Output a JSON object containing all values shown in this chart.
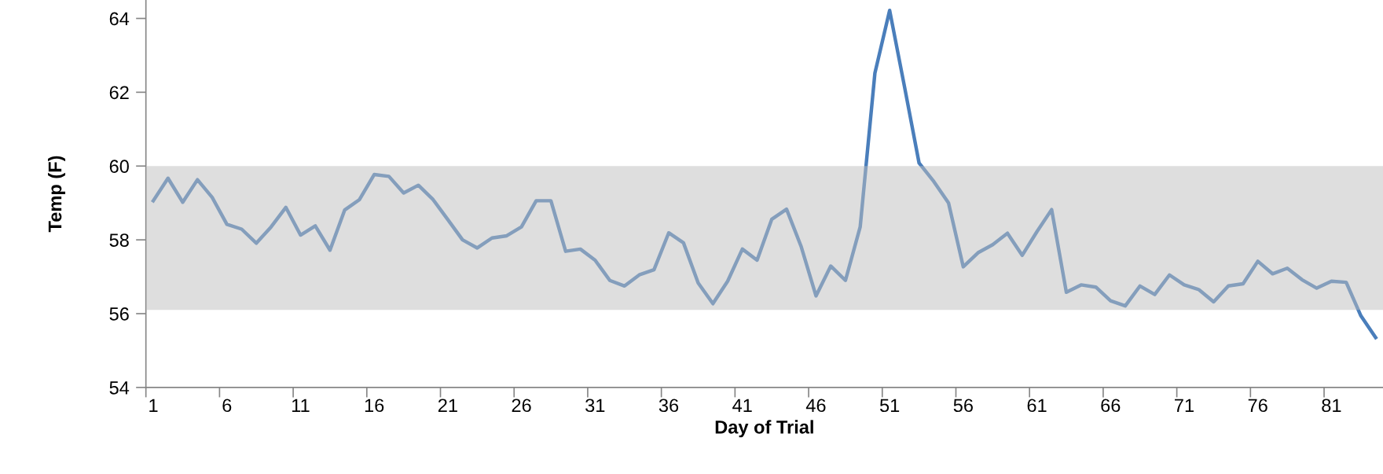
{
  "chart_data": {
    "type": "line",
    "xlabel": "Day of Trial",
    "ylabel": "Temp (F)",
    "categories": [
      "1",
      null,
      null,
      null,
      null,
      "6",
      null,
      null,
      null,
      null,
      "11",
      null,
      null,
      null,
      null,
      "16",
      null,
      null,
      null,
      null,
      "21",
      null,
      null,
      null,
      null,
      "26",
      null,
      null,
      null,
      null,
      "31",
      null,
      null,
      null,
      null,
      "36",
      null,
      null,
      null,
      null,
      "41",
      null,
      null,
      null,
      null,
      "46",
      null,
      null,
      null,
      null,
      "51",
      null,
      null,
      null,
      null,
      "56",
      null,
      null,
      null,
      null,
      "61",
      null,
      null,
      null,
      null,
      "66",
      null,
      null,
      null,
      null,
      "71",
      null,
      null,
      null,
      null,
      "76",
      null,
      null,
      null,
      null,
      "81",
      null,
      null,
      null
    ],
    "series": [
      {
        "color": "#4a7ebb",
        "values": [
          59.06,
          59.67,
          59.02,
          59.63,
          59.15,
          58.42,
          58.29,
          57.91,
          58.35,
          58.88,
          58.13,
          58.38,
          57.72,
          58.81,
          59.09,
          59.77,
          59.72,
          59.27,
          59.48,
          59.09,
          58.55,
          58.0,
          57.78,
          58.05,
          58.11,
          58.35,
          59.06,
          59.06,
          57.69,
          57.75,
          57.45,
          56.9,
          56.75,
          57.05,
          57.19,
          58.19,
          57.92,
          56.83,
          56.27,
          56.88,
          57.75,
          57.45,
          58.56,
          58.83,
          57.81,
          56.48,
          57.29,
          56.9,
          58.35,
          62.52,
          64.22,
          62.17,
          60.08,
          59.58,
          59.0,
          57.27,
          57.65,
          57.87,
          58.18,
          57.58,
          58.22,
          58.82,
          56.58,
          56.78,
          56.72,
          56.35,
          56.21,
          56.75,
          56.52,
          57.05,
          56.78,
          56.65,
          56.32,
          56.75,
          56.81,
          57.42,
          57.08,
          57.23,
          56.92,
          56.69,
          56.88,
          56.85,
          55.94,
          55.35
        ]
      }
    ],
    "ylim": [
      54,
      64.5
    ],
    "yticks": [
      54,
      56,
      58,
      60,
      62,
      64
    ],
    "bands": [
      {
        "axis": "y",
        "from": 56.1,
        "to": 60,
        "color": "#bebebe"
      }
    ],
    "grid": false,
    "marker": "none",
    "line_style": "solid"
  }
}
